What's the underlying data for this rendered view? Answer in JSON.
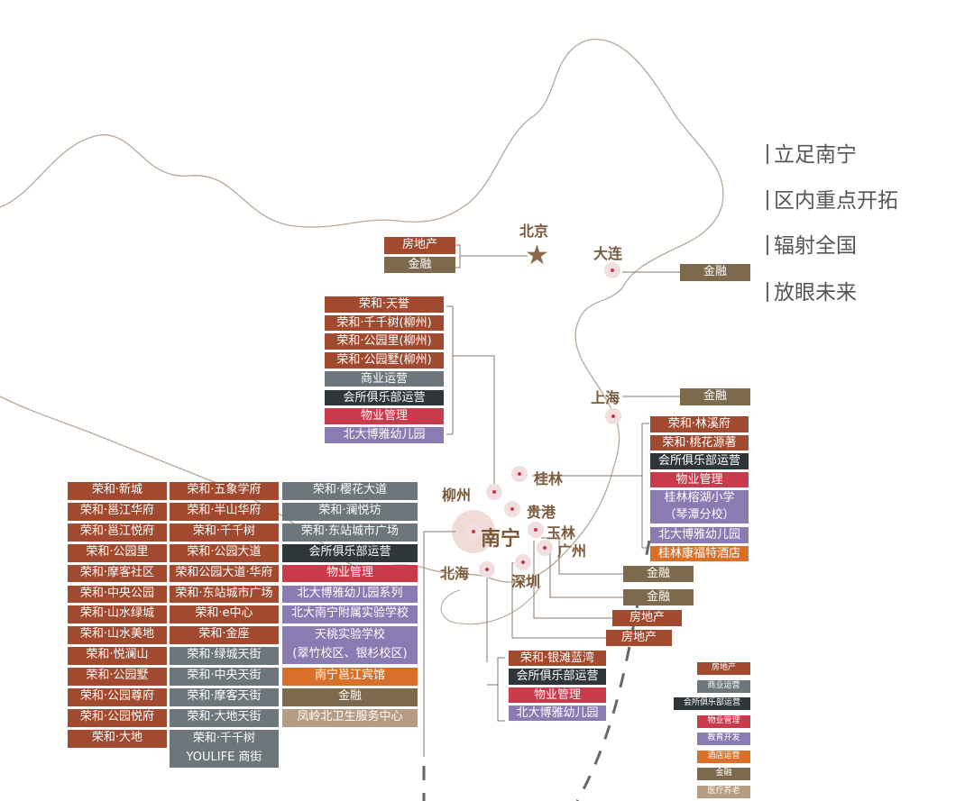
{
  "categories": {
    "re": {
      "label": "房地产",
      "color": "#a24a2f"
    },
    "com": {
      "label": "商业运营",
      "color": "#6c767b"
    },
    "club": {
      "label": "会所俱乐部运营",
      "color": "#2f3639"
    },
    "pm": {
      "label": "物业管理",
      "color": "#c93a4b"
    },
    "edu": {
      "label": "教育开发",
      "color": "#8a7bb2"
    },
    "hotel": {
      "label": "酒店运营",
      "color": "#d8702a"
    },
    "fin": {
      "label": "金融",
      "color": "#7d6a4d"
    },
    "med": {
      "label": "医疗养老",
      "color": "#b59c82"
    }
  },
  "slogans": [
    "立足南宁",
    "区内重点开拓",
    "辐射全国",
    "放眼未来"
  ],
  "cities": [
    {
      "name": "北京",
      "icon": "star-icon"
    },
    {
      "name": "大连"
    },
    {
      "name": "上海"
    },
    {
      "name": "桂林"
    },
    {
      "name": "柳州"
    },
    {
      "name": "贵港"
    },
    {
      "name": "南宁"
    },
    {
      "name": "玉林"
    },
    {
      "name": "广州"
    },
    {
      "name": "北海"
    },
    {
      "name": "深圳"
    }
  ],
  "groups": {
    "beijing": [
      {
        "label": "房地产",
        "cat": "re"
      },
      {
        "label": "金融",
        "cat": "fin"
      }
    ],
    "dalian": [
      {
        "label": "金融",
        "cat": "fin"
      }
    ],
    "shanghai": [
      {
        "label": "金融",
        "cat": "fin"
      }
    ],
    "liuzhou": [
      {
        "label": "荣和·天誉",
        "cat": "re"
      },
      {
        "label": "荣和·千千树(柳州)",
        "cat": "re"
      },
      {
        "label": "荣和·公园里(柳州)",
        "cat": "re"
      },
      {
        "label": "荣和·公园墅(柳州)",
        "cat": "re"
      },
      {
        "label": "商业运营",
        "cat": "com"
      },
      {
        "label": "会所俱乐部运营",
        "cat": "club"
      },
      {
        "label": "物业管理",
        "cat": "pm"
      },
      {
        "label": "北大博雅幼儿园",
        "cat": "edu"
      }
    ],
    "guilin": [
      {
        "label": "荣和·林溪府",
        "cat": "re"
      },
      {
        "label": "荣和·桃花源著",
        "cat": "re"
      },
      {
        "label": "会所俱乐部运营",
        "cat": "club"
      },
      {
        "label": "物业管理",
        "cat": "pm"
      },
      {
        "label": "桂林榕湖小学\n（琴潭分校）",
        "cat": "edu",
        "double": true
      },
      {
        "label": "北大博雅幼儿园",
        "cat": "edu"
      },
      {
        "label": "桂林康福特酒店",
        "cat": "hotel"
      }
    ],
    "yulin": [
      {
        "label": "金融",
        "cat": "fin"
      }
    ],
    "guangzhou": [
      {
        "label": "金融",
        "cat": "fin"
      }
    ],
    "guigang": [
      {
        "label": "房地产",
        "cat": "re"
      }
    ],
    "shenzhen": [
      {
        "label": "房地产",
        "cat": "re"
      }
    ],
    "beihai": [
      {
        "label": "荣和·银滩蓝湾",
        "cat": "re"
      },
      {
        "label": "会所俱乐部运营",
        "cat": "club"
      },
      {
        "label": "物业管理",
        "cat": "pm"
      },
      {
        "label": "北大博雅幼儿园",
        "cat": "edu"
      }
    ],
    "nanning1": [
      {
        "label": "荣和·新城",
        "cat": "re"
      },
      {
        "label": "荣和·邕江华府",
        "cat": "re"
      },
      {
        "label": "荣和·邕江悦府",
        "cat": "re"
      },
      {
        "label": "荣和·公园里",
        "cat": "re"
      },
      {
        "label": "荣和·摩客社区",
        "cat": "re"
      },
      {
        "label": "荣和·中央公园",
        "cat": "re"
      },
      {
        "label": "荣和·山水绿城",
        "cat": "re"
      },
      {
        "label": "荣和·山水美地",
        "cat": "re"
      },
      {
        "label": "荣和·悦澜山",
        "cat": "re"
      },
      {
        "label": "荣和·公园墅",
        "cat": "re"
      },
      {
        "label": "荣和·公园尊府",
        "cat": "re"
      },
      {
        "label": "荣和·公园悦府",
        "cat": "re"
      },
      {
        "label": "荣和·大地",
        "cat": "re"
      }
    ],
    "nanning2": [
      {
        "label": "荣和·五象学府",
        "cat": "re"
      },
      {
        "label": "荣和·半山华府",
        "cat": "re"
      },
      {
        "label": "荣和·千千树",
        "cat": "re"
      },
      {
        "label": "荣和·公园大道",
        "cat": "re"
      },
      {
        "label": "荣和公园大道·华府",
        "cat": "re"
      },
      {
        "label": "荣和·东站城市广场",
        "cat": "re"
      },
      {
        "label": "荣和·e中心",
        "cat": "re"
      },
      {
        "label": "荣和·金座",
        "cat": "re"
      },
      {
        "label": "荣和·绿城天街",
        "cat": "com"
      },
      {
        "label": "荣和·中央天街",
        "cat": "com"
      },
      {
        "label": "荣和·摩客天街",
        "cat": "com"
      },
      {
        "label": "荣和·大地天街",
        "cat": "com"
      },
      {
        "label": "荣和·千千树\nYOULIFE 商街",
        "cat": "com",
        "double": true
      }
    ],
    "nanning3": [
      {
        "label": "荣和·樱花大道",
        "cat": "com"
      },
      {
        "label": "荣和·澜悦坊",
        "cat": "com"
      },
      {
        "label": "荣和·东站城市广场",
        "cat": "com"
      },
      {
        "label": "会所俱乐部运营",
        "cat": "club"
      },
      {
        "label": "物业管理",
        "cat": "pm"
      },
      {
        "label": "北大博雅幼儿园系列",
        "cat": "edu"
      },
      {
        "label": "北大南宁附属实验学校",
        "cat": "edu"
      },
      {
        "label": "天桃实验学校\n(翠竹校区、银杉校区)",
        "cat": "edu",
        "double": true
      },
      {
        "label": "南宁邕江宾馆",
        "cat": "hotel"
      },
      {
        "label": "金融",
        "cat": "fin"
      },
      {
        "label": "凤岭北卫生服务中心",
        "cat": "med"
      }
    ]
  }
}
